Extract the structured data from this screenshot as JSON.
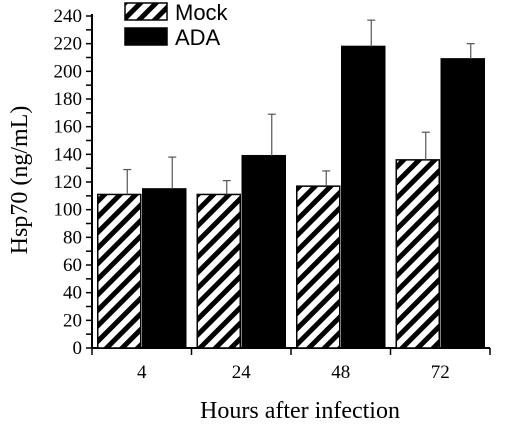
{
  "chart_data": {
    "type": "bar",
    "xlabel": "Hours after infection",
    "ylabel": "Hsp70 (ng/mL)",
    "categories": [
      "4",
      "24",
      "48",
      "72"
    ],
    "ylim": [
      0,
      240
    ],
    "yticks": [
      "0",
      "10",
      "20",
      "30",
      "40",
      "50",
      "60",
      "70",
      "80",
      "90",
      "100",
      "110",
      "120",
      "130",
      "140",
      "150",
      "160",
      "170",
      "180",
      "190",
      "200",
      "210",
      "220",
      "230",
      "240"
    ],
    "legend_position": "top-left",
    "series": [
      {
        "name": "Mock",
        "pattern": "diagonal-hatch",
        "values": [
          111,
          111,
          117,
          136
        ],
        "errors": [
          18,
          10,
          11,
          20
        ]
      },
      {
        "name": "ADA",
        "pattern": "solid-black",
        "values": [
          115,
          139,
          218,
          209
        ],
        "errors": [
          23,
          30,
          19,
          11
        ]
      }
    ]
  }
}
